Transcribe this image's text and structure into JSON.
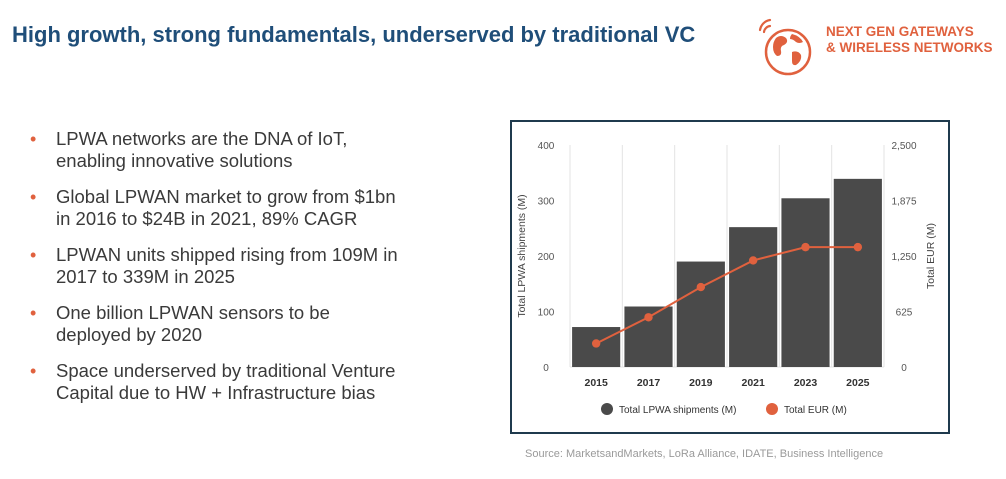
{
  "header": {
    "title": "High growth, strong fundamentals, underserved by traditional VC"
  },
  "logo": {
    "line1": "NEXT GEN GATEWAYS",
    "line2": "& WIRELESS NETWORKS",
    "icon": "globe-wifi-icon",
    "color": "#e0613e"
  },
  "bullets": [
    {
      "line1": "LPWA networks are the DNA of IoT,",
      "line2": "enabling innovative solutions"
    },
    {
      "line1": "Global LPWAN market to grow from $1bn",
      "line2": "in 2016 to $24B in 2021, 89% CAGR"
    },
    {
      "line1": "LPWAN units shipped rising from 109M in",
      "line2": "2017 to 339M in 2025"
    },
    {
      "line1": "One billion LPWAN sensors to be",
      "line2": "deployed by 2020"
    },
    {
      "line1": "Space underserved by traditional Venture",
      "line2": "Capital due to HW + Infrastructure bias"
    }
  ],
  "source": "Source: MarketsandMarkets, LoRa Alliance, IDATE, Business Intelligence",
  "chart_data": {
    "type": "bar",
    "categories": [
      "2015",
      "2017",
      "2019",
      "2021",
      "2023",
      "2025"
    ],
    "series": [
      {
        "name": "Total LPWA shipments (M)",
        "kind": "bar",
        "axis": "left",
        "color": "#4a4a4a",
        "values": [
          72,
          109,
          190,
          252,
          304,
          339
        ]
      },
      {
        "name": "Total EUR (M)",
        "kind": "line",
        "axis": "right",
        "color": "#e0613e",
        "values": [
          265,
          560,
          900,
          1200,
          1350,
          1350
        ]
      }
    ],
    "ylabel": "Total LPWA shipments (M)",
    "y2label": "Total EUR (M)",
    "ylim": [
      0,
      400
    ],
    "y2lim": [
      0,
      2500
    ],
    "yticks": [
      "0",
      "100",
      "200",
      "300",
      "400"
    ],
    "y2ticks": [
      "0",
      "625",
      "1,250",
      "1,875",
      "2,500"
    ],
    "legend_position": "bottom",
    "grid": "vertical"
  }
}
